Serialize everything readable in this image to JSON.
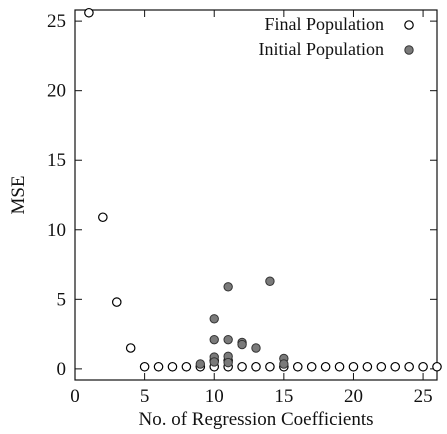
{
  "chart_data": {
    "type": "scatter",
    "title": "",
    "xlabel": "No. of Regression Coefficients",
    "ylabel": "MSE",
    "xlim": [
      0,
      26
    ],
    "ylim": [
      -0.8,
      25.8
    ],
    "xticks": [
      0,
      5,
      10,
      15,
      20,
      25
    ],
    "yticks": [
      0,
      5,
      10,
      15,
      20,
      25
    ],
    "xtick_labels": [
      "0",
      "5",
      "10",
      "15",
      "20",
      "25"
    ],
    "ytick_labels": [
      "0",
      "5",
      "10",
      "15",
      "20",
      "25"
    ],
    "grid": false,
    "legend_position": "top-right",
    "series": [
      {
        "name": "Final Population",
        "marker": "open-circle",
        "color": "#000000",
        "points": [
          {
            "x": 1,
            "y": 25.6
          },
          {
            "x": 2,
            "y": 10.9
          },
          {
            "x": 3,
            "y": 4.8
          },
          {
            "x": 4,
            "y": 1.5
          },
          {
            "x": 5,
            "y": 0.15
          },
          {
            "x": 6,
            "y": 0.15
          },
          {
            "x": 7,
            "y": 0.15
          },
          {
            "x": 8,
            "y": 0.15
          },
          {
            "x": 9,
            "y": 0.15
          },
          {
            "x": 10,
            "y": 0.15
          },
          {
            "x": 11,
            "y": 0.15
          },
          {
            "x": 12,
            "y": 0.15
          },
          {
            "x": 13,
            "y": 0.15
          },
          {
            "x": 14,
            "y": 0.15
          },
          {
            "x": 15,
            "y": 0.15
          },
          {
            "x": 16,
            "y": 0.15
          },
          {
            "x": 17,
            "y": 0.15
          },
          {
            "x": 18,
            "y": 0.15
          },
          {
            "x": 19,
            "y": 0.15
          },
          {
            "x": 20,
            "y": 0.15
          },
          {
            "x": 21,
            "y": 0.15
          },
          {
            "x": 22,
            "y": 0.15
          },
          {
            "x": 23,
            "y": 0.15
          },
          {
            "x": 24,
            "y": 0.15
          },
          {
            "x": 25,
            "y": 0.15
          },
          {
            "x": 26,
            "y": 0.15
          },
          {
            "x": 10,
            "y": 0.6
          },
          {
            "x": 11,
            "y": 0.6
          }
        ]
      },
      {
        "name": "Initial Population",
        "marker": "filled-circle",
        "color": "#7a7a7a",
        "points": [
          {
            "x": 11,
            "y": 5.9
          },
          {
            "x": 14,
            "y": 6.3
          },
          {
            "x": 10,
            "y": 3.6
          },
          {
            "x": 10,
            "y": 2.1
          },
          {
            "x": 11,
            "y": 2.1
          },
          {
            "x": 12,
            "y": 1.9
          },
          {
            "x": 12,
            "y": 1.75
          },
          {
            "x": 13,
            "y": 1.5
          },
          {
            "x": 9,
            "y": 0.35
          },
          {
            "x": 10,
            "y": 0.85
          },
          {
            "x": 10,
            "y": 0.5
          },
          {
            "x": 11,
            "y": 0.9
          },
          {
            "x": 11,
            "y": 0.45
          },
          {
            "x": 15,
            "y": 0.75
          },
          {
            "x": 15,
            "y": 0.35
          }
        ]
      }
    ]
  }
}
